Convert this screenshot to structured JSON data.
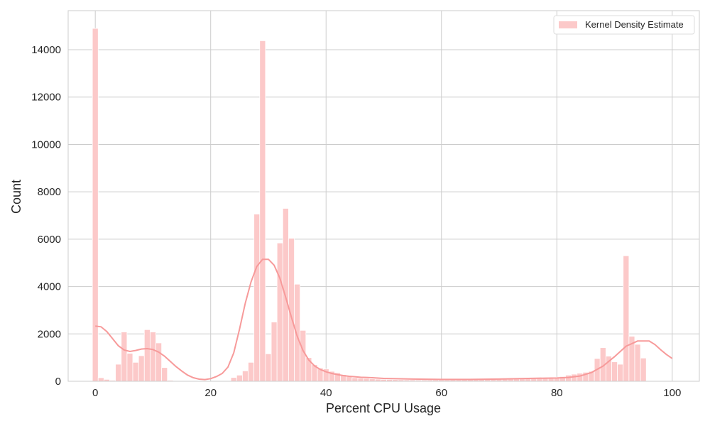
{
  "chart_data": {
    "type": "bar",
    "xlabel": "Percent CPU Usage",
    "ylabel": "Count",
    "xlim": [
      -4.7,
      104.7
    ],
    "ylim": [
      0,
      15650
    ],
    "xticks": [
      0,
      20,
      40,
      60,
      80,
      100
    ],
    "yticks": [
      0,
      2000,
      4000,
      6000,
      8000,
      10000,
      12000,
      14000
    ],
    "grid": true,
    "legend": {
      "position": "top-right",
      "entries": [
        "Kernel Density Estimate"
      ]
    },
    "bar_color": "#fcc9c9",
    "kde_color": "#f79a9a",
    "bin_width": 1,
    "bins": [
      {
        "x": 0,
        "y": 14900
      },
      {
        "x": 1,
        "y": 150
      },
      {
        "x": 2,
        "y": 80
      },
      {
        "x": 3,
        "y": 40
      },
      {
        "x": 4,
        "y": 720
      },
      {
        "x": 5,
        "y": 2080
      },
      {
        "x": 6,
        "y": 1180
      },
      {
        "x": 7,
        "y": 800
      },
      {
        "x": 8,
        "y": 1080
      },
      {
        "x": 9,
        "y": 2180
      },
      {
        "x": 10,
        "y": 2080
      },
      {
        "x": 11,
        "y": 1620
      },
      {
        "x": 12,
        "y": 580
      },
      {
        "x": 13,
        "y": 40
      },
      {
        "x": 14,
        "y": 10
      },
      {
        "x": 15,
        "y": 5
      },
      {
        "x": 16,
        "y": 5
      },
      {
        "x": 17,
        "y": 5
      },
      {
        "x": 18,
        "y": 5
      },
      {
        "x": 19,
        "y": 5
      },
      {
        "x": 20,
        "y": 5
      },
      {
        "x": 21,
        "y": 5
      },
      {
        "x": 22,
        "y": 5
      },
      {
        "x": 23,
        "y": 10
      },
      {
        "x": 24,
        "y": 160
      },
      {
        "x": 25,
        "y": 260
      },
      {
        "x": 26,
        "y": 440
      },
      {
        "x": 27,
        "y": 800
      },
      {
        "x": 28,
        "y": 7060
      },
      {
        "x": 29,
        "y": 14380
      },
      {
        "x": 30,
        "y": 1160
      },
      {
        "x": 31,
        "y": 2500
      },
      {
        "x": 32,
        "y": 5840
      },
      {
        "x": 33,
        "y": 7300
      },
      {
        "x": 34,
        "y": 6040
      },
      {
        "x": 35,
        "y": 4100
      },
      {
        "x": 36,
        "y": 2150
      },
      {
        "x": 37,
        "y": 1000
      },
      {
        "x": 38,
        "y": 700
      },
      {
        "x": 39,
        "y": 560
      },
      {
        "x": 40,
        "y": 520
      },
      {
        "x": 41,
        "y": 420
      },
      {
        "x": 42,
        "y": 360
      },
      {
        "x": 43,
        "y": 280
      },
      {
        "x": 44,
        "y": 200
      },
      {
        "x": 45,
        "y": 150
      },
      {
        "x": 46,
        "y": 130
      },
      {
        "x": 47,
        "y": 120
      },
      {
        "x": 48,
        "y": 100
      },
      {
        "x": 49,
        "y": 90
      },
      {
        "x": 50,
        "y": 80
      },
      {
        "x": 51,
        "y": 75
      },
      {
        "x": 52,
        "y": 70
      },
      {
        "x": 53,
        "y": 65
      },
      {
        "x": 54,
        "y": 60
      },
      {
        "x": 55,
        "y": 60
      },
      {
        "x": 56,
        "y": 55
      },
      {
        "x": 57,
        "y": 55
      },
      {
        "x": 58,
        "y": 55
      },
      {
        "x": 59,
        "y": 55
      },
      {
        "x": 60,
        "y": 55
      },
      {
        "x": 61,
        "y": 55
      },
      {
        "x": 62,
        "y": 60
      },
      {
        "x": 63,
        "y": 60
      },
      {
        "x": 64,
        "y": 65
      },
      {
        "x": 65,
        "y": 70
      },
      {
        "x": 66,
        "y": 75
      },
      {
        "x": 67,
        "y": 80
      },
      {
        "x": 68,
        "y": 90
      },
      {
        "x": 69,
        "y": 100
      },
      {
        "x": 70,
        "y": 110
      },
      {
        "x": 71,
        "y": 120
      },
      {
        "x": 72,
        "y": 130
      },
      {
        "x": 73,
        "y": 140
      },
      {
        "x": 74,
        "y": 140
      },
      {
        "x": 75,
        "y": 140
      },
      {
        "x": 76,
        "y": 140
      },
      {
        "x": 77,
        "y": 150
      },
      {
        "x": 78,
        "y": 150
      },
      {
        "x": 79,
        "y": 160
      },
      {
        "x": 80,
        "y": 170
      },
      {
        "x": 81,
        "y": 200
      },
      {
        "x": 82,
        "y": 260
      },
      {
        "x": 83,
        "y": 300
      },
      {
        "x": 84,
        "y": 340
      },
      {
        "x": 85,
        "y": 380
      },
      {
        "x": 86,
        "y": 420
      },
      {
        "x": 87,
        "y": 960
      },
      {
        "x": 88,
        "y": 1420
      },
      {
        "x": 89,
        "y": 1060
      },
      {
        "x": 90,
        "y": 820
      },
      {
        "x": 91,
        "y": 720
      },
      {
        "x": 92,
        "y": 5300
      },
      {
        "x": 93,
        "y": 1900
      },
      {
        "x": 94,
        "y": 1560
      },
      {
        "x": 95,
        "y": 980
      }
    ],
    "kde": {
      "x": [
        0,
        1,
        2,
        3,
        4,
        5,
        6,
        7,
        8,
        9,
        10,
        11,
        12,
        13,
        14,
        15,
        16,
        17,
        18,
        19,
        20,
        21,
        22,
        23,
        24,
        25,
        26,
        27,
        28,
        29,
        30,
        31,
        32,
        33,
        34,
        35,
        36,
        37,
        38,
        39,
        40,
        41,
        42,
        43,
        44,
        45,
        46,
        47,
        48,
        50,
        55,
        60,
        65,
        70,
        75,
        80,
        82,
        84,
        86,
        88,
        90,
        92,
        94,
        96,
        97,
        98,
        99,
        100
      ],
      "y": [
        2330,
        2300,
        2100,
        1800,
        1500,
        1320,
        1260,
        1300,
        1360,
        1380,
        1340,
        1230,
        1060,
        840,
        620,
        430,
        260,
        150,
        90,
        70,
        110,
        200,
        330,
        600,
        1200,
        2200,
        3300,
        4200,
        4850,
        5150,
        5150,
        4900,
        4350,
        3550,
        2700,
        1900,
        1300,
        900,
        650,
        500,
        400,
        330,
        280,
        240,
        210,
        190,
        170,
        160,
        150,
        120,
        95,
        80,
        80,
        95,
        120,
        140,
        160,
        220,
        370,
        640,
        1040,
        1480,
        1700,
        1700,
        1550,
        1330,
        1130,
        960
      ]
    }
  }
}
